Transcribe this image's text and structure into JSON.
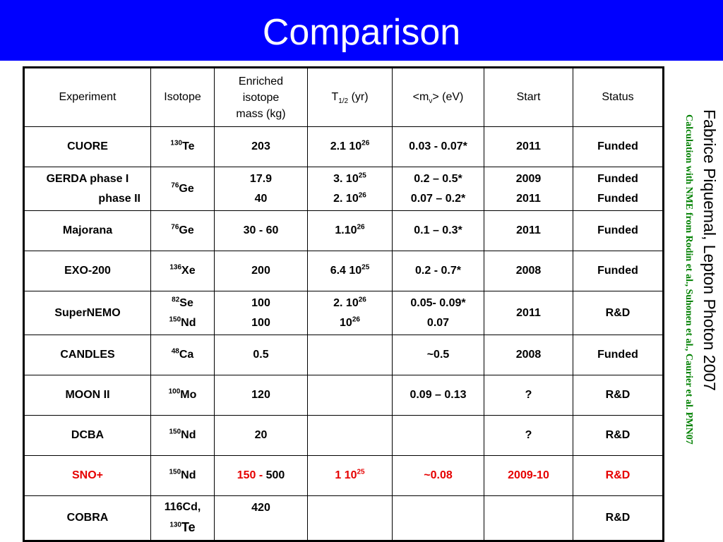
{
  "title": "Comparison",
  "side_author": "Fabrice Piquemal, Lepton Photon 2007",
  "side_note": "Calculation with NME from Rodin et al., Suhonen et al., Caurier et al. PMN07",
  "headers": {
    "experiment": "Experiment",
    "isotope": "Isotope",
    "mass_l1": "Enriched",
    "mass_l2": "isotope",
    "mass_l3": "mass (kg)",
    "t_main": "T",
    "t_sub": "1/2",
    "t_unit": " (yr)",
    "m_pre": "<m",
    "m_sub": "ν",
    "m_post": "> (eV)",
    "start": "Start",
    "status": "Status"
  },
  "rows": [
    {
      "exp": "CUORE",
      "iso_a": "130",
      "iso_s": "Te",
      "mass": "203",
      "t_base": "2.1 10",
      "t_exp": "26",
      "m": "0.03 - 0.07*",
      "start": "2011",
      "status": "Funded"
    },
    {
      "exp1": "GERDA phase I",
      "exp2": "phase II",
      "iso_a": "76",
      "iso_s": "Ge",
      "mass1": "17.9",
      "mass2": "40",
      "t1_base": "3. 10",
      "t1_exp": "25",
      "t2_base": "2. 10",
      "t2_exp": "26",
      "m1": "0.2 – 0.5*",
      "m2": "0.07 – 0.2*",
      "start1": "2009",
      "start2": "2011",
      "status1": "Funded",
      "status2": "Funded"
    },
    {
      "exp": "Majorana",
      "iso_a": "76",
      "iso_s": "Ge",
      "mass": "30 - 60",
      "t_base": "1.10",
      "t_exp": "26",
      "m": "0.1 – 0.3*",
      "start": "2011",
      "status": "Funded"
    },
    {
      "exp": "EXO-200",
      "iso_a": "136",
      "iso_s": "Xe",
      "mass": "200",
      "t_base": "6.4 10",
      "t_exp": "25",
      "m": "0.2 - 0.7*",
      "start": "2008",
      "status": "Funded"
    },
    {
      "exp": "SuperNEMO",
      "iso1_a": "82",
      "iso1_s": "Se",
      "iso2_a": "150",
      "iso2_s": "Nd",
      "mass1": "100",
      "mass2": "100",
      "t1_base": "2. 10",
      "t1_exp": "26",
      "t2_base": "10",
      "t2_exp": "26",
      "m1": "0.05- 0.09*",
      "m2": "0.07",
      "start": "2011",
      "status": "R&D"
    },
    {
      "exp": "CANDLES",
      "iso_a": "48",
      "iso_s": "Ca",
      "mass": "0.5",
      "m": "~0.5",
      "start": "2008",
      "status": "Funded"
    },
    {
      "exp": "MOON II",
      "iso_a": "100",
      "iso_s": "Mo",
      "mass": "120",
      "m": "0.09 – 0.13",
      "start": "?",
      "status": "R&D"
    },
    {
      "exp": "DCBA",
      "iso_a": "150",
      "iso_s": "Nd",
      "mass": "20",
      "start": "?",
      "status": "R&D"
    },
    {
      "exp": "SNO+",
      "iso_a": "150",
      "iso_s": "Nd",
      "mass_a": "150 - ",
      "mass_b": "500",
      "t_base": "1 10",
      "t_exp": "25",
      "m": "~0.08",
      "start": "2009-10",
      "status": "R&D"
    },
    {
      "iso1": "116Cd,",
      "iso2_a": "130",
      "iso2_s": "Te",
      "exp": "COBRA",
      "mass": "420",
      "status": "R&D"
    }
  ],
  "colors": {
    "title_bg": "#0000ff",
    "title_text": "#ffffff",
    "highlight": "#e60000",
    "note": "#008000"
  }
}
